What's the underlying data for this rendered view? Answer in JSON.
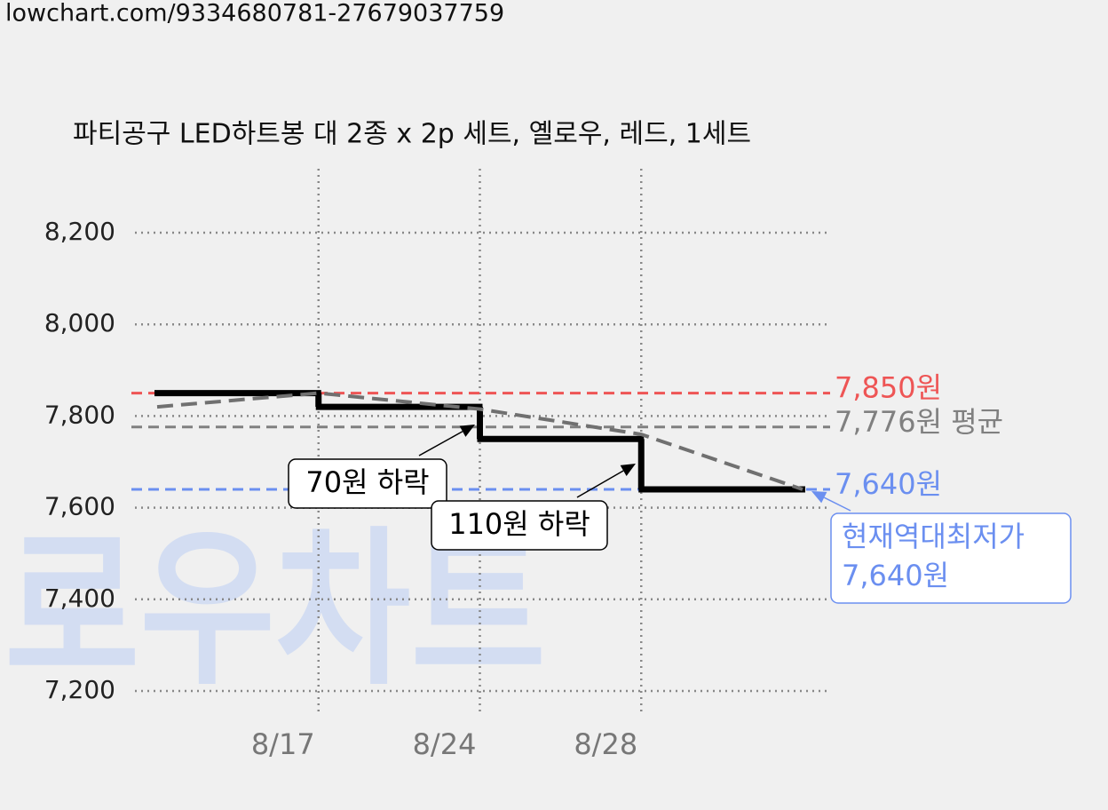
{
  "url": "lowchart.com/9334680781-27679037759",
  "watermark": "로우차트",
  "chart_data": {
    "type": "line",
    "title": "파티공구 LED하트봉 대 2종 x 2p 세트, 옐로우, 레드, 1세트",
    "categories": [
      null,
      "8/17",
      "8/24",
      "8/28",
      null
    ],
    "series": [
      {
        "color": "#000000",
        "style": "step",
        "values": [
          7850,
          7820,
          7750,
          7640,
          7640
        ]
      },
      {
        "color": "#707070",
        "style": "dashed",
        "values": [
          7820,
          7850,
          7815,
          7760,
          7640
        ]
      }
    ],
    "ylim": [
      7200,
      8200
    ],
    "yticks": [
      {
        "value": 7200,
        "label": "7,200"
      },
      {
        "value": 7400,
        "label": "7,400"
      },
      {
        "value": 7600,
        "label": "7,600"
      },
      {
        "value": 7800,
        "label": "7,800"
      },
      {
        "value": 8000,
        "label": "8,000"
      },
      {
        "value": 8200,
        "label": "8,200"
      }
    ],
    "grid": true,
    "reference_lines": [
      {
        "value": 7850,
        "label": "7,850원",
        "color": "#ee5555"
      },
      {
        "value": 7776,
        "label": "7,776원 평균",
        "color": "#808080"
      },
      {
        "value": 7640,
        "label": "7,640원",
        "color": "#6b8ff0"
      }
    ],
    "annotations": [
      {
        "lines": [
          "70원 하락"
        ]
      },
      {
        "lines": [
          "110원 하락"
        ]
      },
      {
        "lines": [
          "현재역대최저가",
          "7,640원"
        ],
        "color": "#6b8ff0"
      }
    ]
  }
}
